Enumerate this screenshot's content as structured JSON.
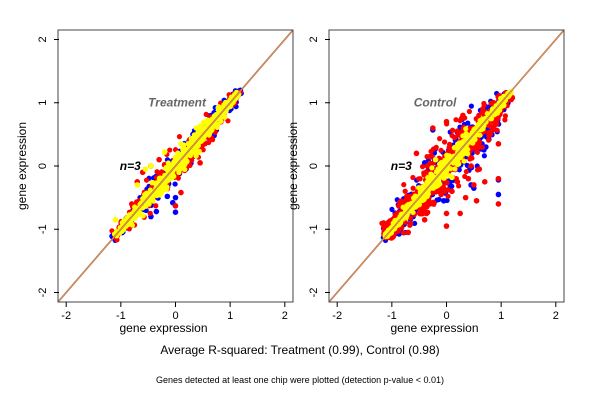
{
  "chart_data": [
    {
      "type": "scatter",
      "title": "Treatment",
      "annotation": "n=3",
      "xlabel": "gene expression",
      "ylabel": "gene expression",
      "xlim": [
        -2.15,
        2.15
      ],
      "ylim": [
        -2.15,
        2.15
      ],
      "xticks": [
        "-2",
        "-1",
        "0",
        "1",
        "2"
      ],
      "yticks": [
        "-2",
        "-1",
        "0",
        "1",
        "2"
      ],
      "reference_line": {
        "slope": 1,
        "intercept": 0,
        "color": "#e8a020"
      },
      "colors": {
        "blue": "#0000ff",
        "red": "#ff0000",
        "yellow": "#ffff00"
      },
      "core_clouds": {
        "blue": {
          "x_range": [
            -1.15,
            1.2
          ],
          "spread": 0.13,
          "count": 220
        },
        "red": {
          "x_range": [
            -1.12,
            1.18
          ],
          "spread": 0.14,
          "count": 260
        },
        "yellow": {
          "x_range": [
            -1.1,
            1.15
          ],
          "spread": 0.09,
          "count": 520
        }
      },
      "outliers": {
        "red": [
          [
            -0.3,
            0.1
          ],
          [
            -0.45,
            0.0
          ],
          [
            -0.7,
            -0.25
          ],
          [
            0.1,
            -0.42
          ],
          [
            0.0,
            -0.63
          ],
          [
            0.35,
            0.4
          ],
          [
            -0.6,
            -0.1
          ],
          [
            0.65,
            0.62
          ],
          [
            0.45,
            0.05
          ],
          [
            0.2,
            -0.02
          ],
          [
            -0.2,
            0.02
          ],
          [
            0.6,
            0.45
          ],
          [
            -0.8,
            -0.6
          ]
        ],
        "blue": [
          [
            -0.45,
            -0.8
          ],
          [
            -0.35,
            -0.72
          ],
          [
            -0.05,
            -0.58
          ],
          [
            0.0,
            -0.5
          ],
          [
            0.0,
            -0.73
          ],
          [
            -0.15,
            -0.48
          ],
          [
            -1.15,
            -1.12
          ],
          [
            1.2,
            1.15
          ],
          [
            0.8,
            0.9
          ]
        ],
        "yellow": [
          [
            -0.55,
            -0.05
          ],
          [
            -0.45,
            0.0
          ],
          [
            -0.7,
            -0.3
          ],
          [
            -0.2,
            0.22
          ],
          [
            -1.1,
            -0.85
          ]
        ]
      }
    },
    {
      "type": "scatter",
      "title": "Control",
      "annotation": "n=3",
      "xlabel": "gene expression",
      "ylabel": "gene expression",
      "xlim": [
        -2.15,
        2.15
      ],
      "ylim": [
        -2.15,
        2.15
      ],
      "xticks": [
        "-2",
        "-1",
        "0",
        "1",
        "2"
      ],
      "yticks": [
        "-2",
        "-1",
        "0",
        "1",
        "2"
      ],
      "reference_line": {
        "slope": 1,
        "intercept": 0,
        "color": "#e8a020"
      },
      "colors": {
        "blue": "#0000ff",
        "red": "#ff0000",
        "yellow": "#ffff00"
      },
      "core_clouds": {
        "blue": {
          "x_range": [
            -1.15,
            1.15
          ],
          "spread": 0.26,
          "count": 260
        },
        "red": {
          "x_range": [
            -1.12,
            1.15
          ],
          "spread": 0.24,
          "count": 520
        },
        "yellow": {
          "x_range": [
            -1.12,
            1.18
          ],
          "spread": 0.08,
          "count": 520
        }
      },
      "outliers": {
        "red": [
          [
            -0.25,
            0.6
          ],
          [
            0.0,
            0.7
          ],
          [
            -0.55,
            0.2
          ],
          [
            -0.3,
            0.15
          ],
          [
            0.2,
            0.55
          ],
          [
            0.3,
            0.8
          ],
          [
            0.6,
            0.3
          ],
          [
            0.95,
            0.35
          ],
          [
            0.95,
            -0.2
          ],
          [
            0.95,
            -0.6
          ],
          [
            0.7,
            -0.25
          ],
          [
            0.55,
            -0.55
          ],
          [
            0.25,
            -0.75
          ],
          [
            0.0,
            -0.95
          ],
          [
            0.0,
            -0.75
          ],
          [
            0.35,
            -0.5
          ],
          [
            -0.4,
            -0.85
          ],
          [
            -0.7,
            -1.05
          ],
          [
            0.1,
            -0.4
          ],
          [
            0.45,
            0.0
          ],
          [
            0.5,
            -0.3
          ],
          [
            -0.3,
            -0.6
          ],
          [
            0.2,
            -0.25
          ],
          [
            0.6,
            0.5
          ],
          [
            -0.1,
            -0.45
          ],
          [
            0.4,
            -0.2
          ],
          [
            0.6,
            -0.05
          ],
          [
            -0.35,
            0.0
          ],
          [
            0.15,
            0.45
          ]
        ],
        "blue": [
          [
            0.95,
            -0.45
          ],
          [
            0.95,
            -0.22
          ],
          [
            -0.25,
            0.57
          ],
          [
            0.72,
            0.3
          ],
          [
            0.5,
            -0.35
          ],
          [
            0.45,
            -0.3
          ],
          [
            0.15,
            -0.05
          ],
          [
            -0.05,
            -0.55
          ],
          [
            -0.4,
            0.05
          ]
        ],
        "yellow": [
          [
            0.1,
            -0.18
          ],
          [
            -0.2,
            0.1
          ]
        ]
      }
    }
  ],
  "footer": {
    "summary": "Average R-squared: Treatment (0.99), Control (0.98)",
    "note": "Genes detected at least one chip were plotted (detection p-value < 0.01)"
  }
}
